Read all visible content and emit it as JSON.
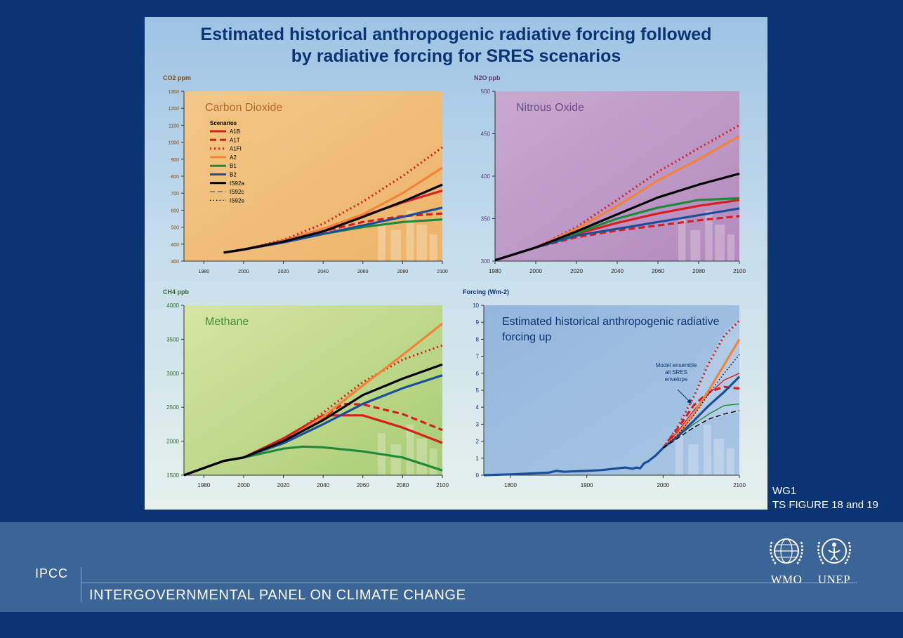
{
  "title_line1": "Estimated historical anthropogenic radiative forcing followed",
  "title_line2": "by radiative forcing for SRES scenarios",
  "wg_label_line1": "WG1",
  "wg_label_line2": "TS FIGURE 18 and 19",
  "footer": {
    "abbr": "IPCC",
    "full_name": "INTERGOVERNMENTAL PANEL ON CLIMATE CHANGE",
    "logo1": "WMO",
    "logo2": "UNEP"
  },
  "logo_icons": [
    "wmo-emblem-icon",
    "unep-emblem-icon"
  ],
  "colors": {
    "background": "#0b3474",
    "footer_band": "#3c6597",
    "A1B": "#d81e1e",
    "A1T": "#d81e1e",
    "A1FI": "#d81e1e",
    "A2": "#f4833a",
    "B1": "#1e8a3a",
    "B2": "#1c4f9a",
    "IS92a": "#000000"
  },
  "chart_data": [
    {
      "id": "co2",
      "type": "line",
      "title": "Carbon Dioxide",
      "ylabel": "CO2 ppm",
      "title_color": "#b86a2c",
      "bg": [
        "#f3c78a",
        "#edb469"
      ],
      "xlim": [
        1970,
        2100
      ],
      "ylim": [
        300,
        1300
      ],
      "xticks": [
        1980,
        2000,
        2020,
        2040,
        2060,
        2080,
        2100
      ],
      "yticks": [
        300,
        400,
        500,
        600,
        700,
        800,
        900,
        1000,
        1100,
        1200,
        1300
      ],
      "legend_title": "Scenarios",
      "legend_position": "top-left",
      "legend": [
        {
          "name": "A1B",
          "color": "#d81e1e",
          "dash": "solid"
        },
        {
          "name": "A1T",
          "color": "#d81e1e",
          "dash": "dash"
        },
        {
          "name": "A1FI",
          "color": "#d81e1e",
          "dash": "dot"
        },
        {
          "name": "A2",
          "color": "#f4833a",
          "dash": "solid"
        },
        {
          "name": "B1",
          "color": "#1e8a3a",
          "dash": "solid"
        },
        {
          "name": "B2",
          "color": "#1c4f9a",
          "dash": "solid"
        },
        {
          "name": "IS92a",
          "color": "#000000",
          "dash": "solid"
        },
        {
          "name": "IS92c",
          "color": "#555555",
          "dash": "longdash"
        },
        {
          "name": "IS92e",
          "color": "#000000",
          "dash": "fine"
        }
      ],
      "series": [
        {
          "name": "A1B",
          "color": "#d81e1e",
          "dash": "solid",
          "x": [
            1990,
            2000,
            2020,
            2040,
            2060,
            2080,
            2100
          ],
          "y": [
            350,
            368,
            420,
            490,
            565,
            645,
            715
          ]
        },
        {
          "name": "A1T",
          "color": "#d81e1e",
          "dash": "dash",
          "x": [
            1990,
            2000,
            2020,
            2040,
            2060,
            2080,
            2100
          ],
          "y": [
            350,
            368,
            415,
            475,
            530,
            565,
            580
          ]
        },
        {
          "name": "A1FI",
          "color": "#d81e1e",
          "dash": "dot",
          "x": [
            1990,
            2000,
            2020,
            2040,
            2060,
            2080,
            2100
          ],
          "y": [
            350,
            368,
            425,
            520,
            650,
            800,
            970
          ]
        },
        {
          "name": "A2",
          "color": "#f4833a",
          "dash": "solid",
          "x": [
            1990,
            2000,
            2020,
            2040,
            2060,
            2080,
            2100
          ],
          "y": [
            350,
            368,
            418,
            490,
            575,
            700,
            850
          ]
        },
        {
          "name": "B1",
          "color": "#1e8a3a",
          "dash": "solid",
          "x": [
            1990,
            2000,
            2020,
            2040,
            2060,
            2080,
            2100
          ],
          "y": [
            350,
            368,
            410,
            460,
            500,
            530,
            545
          ]
        },
        {
          "name": "B2",
          "color": "#1c4f9a",
          "dash": "solid",
          "x": [
            1990,
            2000,
            2020,
            2040,
            2060,
            2080,
            2100
          ],
          "y": [
            350,
            368,
            410,
            460,
            510,
            560,
            615
          ]
        },
        {
          "name": "IS92a",
          "color": "#000000",
          "dash": "solid",
          "x": [
            1990,
            2000,
            2020,
            2040,
            2060,
            2080,
            2100
          ],
          "y": [
            350,
            368,
            415,
            475,
            560,
            650,
            750
          ]
        }
      ]
    },
    {
      "id": "n2o",
      "type": "line",
      "title": "Nitrous Oxide",
      "ylabel": "N2O ppb",
      "title_color": "#6b4d86",
      "bg": [
        "#c9a9cf",
        "#b38abd"
      ],
      "xlim": [
        1980,
        2100
      ],
      "ylim": [
        300,
        500
      ],
      "xticks": [
        1980,
        2000,
        2020,
        2040,
        2060,
        2080,
        2100
      ],
      "yticks": [
        300,
        350,
        400,
        450,
        500
      ],
      "series": [
        {
          "name": "A1B",
          "color": "#d81e1e",
          "dash": "solid",
          "x": [
            1980,
            2000,
            2020,
            2040,
            2060,
            2080,
            2100
          ],
          "y": [
            301,
            316,
            332,
            345,
            356,
            365,
            372
          ]
        },
        {
          "name": "A1T",
          "color": "#d81e1e",
          "dash": "dash",
          "x": [
            1980,
            2000,
            2020,
            2040,
            2060,
            2080,
            2100
          ],
          "y": [
            301,
            316,
            328,
            336,
            342,
            348,
            353
          ]
        },
        {
          "name": "A1FI",
          "color": "#d81e1e",
          "dash": "dot",
          "x": [
            1980,
            2000,
            2020,
            2040,
            2060,
            2080,
            2100
          ],
          "y": [
            301,
            316,
            340,
            372,
            405,
            433,
            460
          ]
        },
        {
          "name": "A2",
          "color": "#f4833a",
          "dash": "solid",
          "x": [
            1980,
            2000,
            2020,
            2040,
            2060,
            2080,
            2100
          ],
          "y": [
            301,
            316,
            338,
            365,
            395,
            420,
            447
          ]
        },
        {
          "name": "B1",
          "color": "#1e8a3a",
          "dash": "solid",
          "x": [
            1980,
            2000,
            2020,
            2040,
            2060,
            2080,
            2100
          ],
          "y": [
            301,
            316,
            333,
            350,
            363,
            372,
            374
          ]
        },
        {
          "name": "B2",
          "color": "#1c4f9a",
          "dash": "solid",
          "x": [
            1980,
            2000,
            2020,
            2040,
            2060,
            2080,
            2100
          ],
          "y": [
            301,
            316,
            330,
            338,
            346,
            354,
            362
          ]
        },
        {
          "name": "IS92a",
          "color": "#000000",
          "dash": "solid",
          "x": [
            1980,
            2000,
            2020,
            2040,
            2060,
            2080,
            2100
          ],
          "y": [
            301,
            316,
            335,
            355,
            375,
            390,
            403
          ]
        }
      ]
    },
    {
      "id": "ch4",
      "type": "line",
      "title": "Methane",
      "ylabel": "CH4 ppb",
      "title_color": "#3e8f35",
      "bg": [
        "#d6e5a3",
        "#a8cc74"
      ],
      "xlim": [
        1970,
        2100
      ],
      "ylim": [
        1500,
        4000
      ],
      "xticks": [
        1980,
        2000,
        2020,
        2040,
        2060,
        2080,
        2100
      ],
      "yticks": [
        1500,
        2000,
        2500,
        3000,
        3500,
        4000
      ],
      "series": [
        {
          "name": "A1B",
          "color": "#d81e1e",
          "dash": "solid",
          "x": [
            1970,
            1990,
            2000,
            2020,
            2040,
            2060,
            2080,
            2100
          ],
          "y": [
            1500,
            1710,
            1760,
            2040,
            2380,
            2380,
            2200,
            1975
          ]
        },
        {
          "name": "A1T",
          "color": "#d81e1e",
          "dash": "dash",
          "x": [
            1970,
            1990,
            2000,
            2020,
            2040,
            2050,
            2060,
            2080,
            2100
          ],
          "y": [
            1500,
            1710,
            1760,
            2000,
            2350,
            2550,
            2540,
            2400,
            2165
          ]
        },
        {
          "name": "A1FI",
          "color": "#d81e1e",
          "dash": "dot",
          "x": [
            1970,
            1990,
            2000,
            2020,
            2040,
            2060,
            2080,
            2100
          ],
          "y": [
            1500,
            1710,
            1760,
            2000,
            2420,
            2870,
            3200,
            3410
          ]
        },
        {
          "name": "A2",
          "color": "#f4833a",
          "dash": "solid",
          "x": [
            1970,
            1990,
            2000,
            2020,
            2040,
            2060,
            2080,
            2100
          ],
          "y": [
            1500,
            1710,
            1760,
            1990,
            2360,
            2820,
            3270,
            3730
          ]
        },
        {
          "name": "B1",
          "color": "#1e8a3a",
          "dash": "solid",
          "x": [
            1970,
            1990,
            2000,
            2020,
            2030,
            2040,
            2060,
            2080,
            2100
          ],
          "y": [
            1500,
            1710,
            1760,
            1890,
            1920,
            1910,
            1850,
            1760,
            1570
          ]
        },
        {
          "name": "B2",
          "color": "#1c4f9a",
          "dash": "solid",
          "x": [
            1970,
            1990,
            2000,
            2020,
            2040,
            2060,
            2080,
            2100
          ],
          "y": [
            1500,
            1710,
            1760,
            1970,
            2250,
            2550,
            2780,
            2970
          ]
        },
        {
          "name": "IS92a",
          "color": "#000000",
          "dash": "solid",
          "x": [
            1970,
            1990,
            2000,
            2020,
            2040,
            2060,
            2080,
            2100
          ],
          "y": [
            1500,
            1710,
            1760,
            2000,
            2310,
            2680,
            2920,
            3130
          ]
        }
      ]
    },
    {
      "id": "forcing",
      "type": "line",
      "title": "Estimated historical anthropogenic radiative forcing up",
      "ylabel": "Forcing (Wm-2)",
      "title_color": "#0b3474",
      "bg": [
        "#93b6dd",
        "#a9c5e4"
      ],
      "xlim": [
        1765,
        2100
      ],
      "ylim": [
        0,
        10
      ],
      "xticks": [
        1800,
        1900,
        2000,
        2100
      ],
      "yticks": [
        0,
        1,
        2,
        3,
        4,
        5,
        6,
        7,
        8,
        9,
        10
      ],
      "annotation": "Model ensemble all SRES envelope",
      "envelope": {
        "x": [
          2000,
          2020,
          2040,
          2060,
          2080,
          2100
        ],
        "upper": [
          1.6,
          2.9,
          4.7,
          6.8,
          8.4,
          9.2
        ],
        "lower": [
          1.6,
          2.2,
          2.8,
          3.2,
          3.5,
          3.7
        ]
      },
      "series": [
        {
          "name": "Historical",
          "color": "#1c4f9a",
          "dash": "solid",
          "x": [
            1765,
            1800,
            1850,
            1860,
            1870,
            1880,
            1900,
            1920,
            1940,
            1950,
            1960,
            1965,
            1970,
            1975,
            1980,
            1990,
            2000
          ],
          "y": [
            0,
            0.05,
            0.15,
            0.25,
            0.2,
            0.22,
            0.25,
            0.3,
            0.4,
            0.45,
            0.38,
            0.45,
            0.4,
            0.7,
            0.8,
            1.15,
            1.6
          ]
        },
        {
          "name": "A1B",
          "color": "#d81e1e",
          "dash": "solid",
          "x": [
            2000,
            2020,
            2040,
            2060,
            2080,
            2100
          ],
          "y": [
            1.6,
            2.6,
            3.8,
            4.8,
            5.6,
            6.0
          ]
        },
        {
          "name": "A1T",
          "color": "#d81e1e",
          "dash": "dash",
          "x": [
            2000,
            2020,
            2040,
            2060,
            2080,
            2100
          ],
          "y": [
            1.6,
            2.8,
            4.1,
            4.9,
            5.2,
            5.1
          ]
        },
        {
          "name": "A1FI",
          "color": "#d81e1e",
          "dash": "dot",
          "x": [
            2000,
            2020,
            2040,
            2060,
            2080,
            2100
          ],
          "y": [
            1.6,
            2.9,
            4.6,
            6.6,
            8.2,
            9.1
          ]
        },
        {
          "name": "A2",
          "color": "#f4833a",
          "dash": "solid",
          "x": [
            2000,
            2020,
            2040,
            2060,
            2080,
            2100
          ],
          "y": [
            1.6,
            2.4,
            3.6,
            5.0,
            6.5,
            8.0
          ]
        },
        {
          "name": "B1",
          "color": "#1e8a3a",
          "dash": "solid",
          "x": [
            2000,
            2020,
            2040,
            2060,
            2080,
            2100
          ],
          "y": [
            1.6,
            2.3,
            3.0,
            3.6,
            4.1,
            4.2
          ]
        },
        {
          "name": "B2",
          "color": "#1c4f9a",
          "dash": "solid",
          "x": [
            2000,
            2020,
            2040,
            2060,
            2080,
            2100
          ],
          "y": [
            1.6,
            2.3,
            3.2,
            4.1,
            4.9,
            5.8
          ]
        },
        {
          "name": "IS92a",
          "color": "#000000",
          "dash": "longdash",
          "x": [
            2000,
            2020,
            2040,
            2060,
            2080,
            2100
          ],
          "y": [
            1.6,
            2.2,
            2.8,
            3.3,
            3.6,
            3.8
          ]
        },
        {
          "name": "IS92e",
          "color": "#000000",
          "dash": "fine",
          "x": [
            2000,
            2020,
            2040,
            2060,
            2080,
            2100
          ],
          "y": [
            1.6,
            2.4,
            3.5,
            4.8,
            6.0,
            7.1
          ]
        }
      ]
    }
  ]
}
